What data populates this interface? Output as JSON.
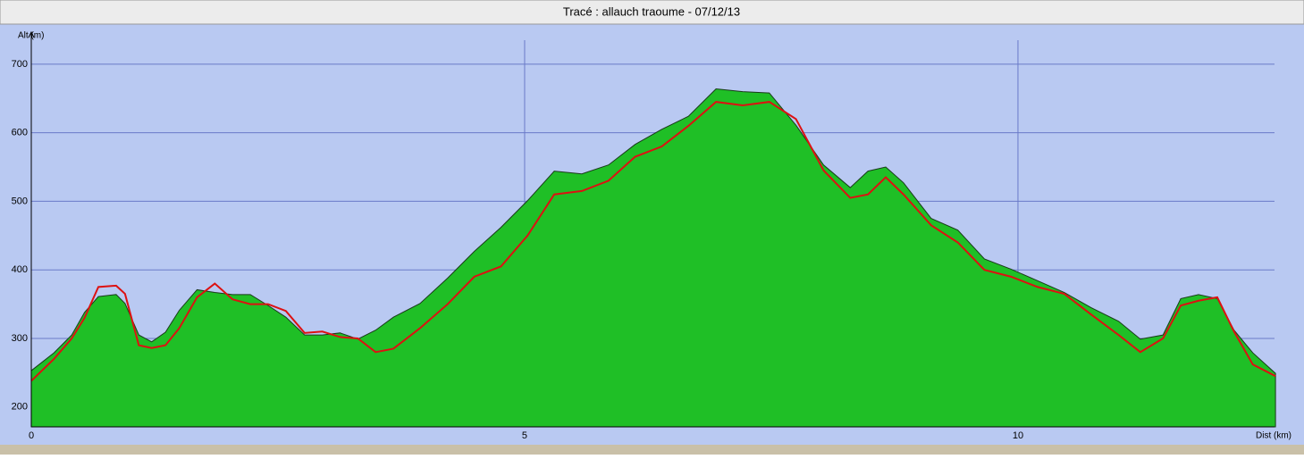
{
  "chart_data": {
    "type": "area",
    "title": "Tracé : allauch traoume - 07/12/13",
    "y_label": "Alt (m)",
    "x_label": "Dist (km)",
    "x": [
      0,
      0.23,
      0.41,
      0.54,
      0.68,
      0.86,
      0.95,
      1.09,
      1.22,
      1.36,
      1.5,
      1.68,
      1.86,
      2.04,
      2.22,
      2.4,
      2.58,
      2.77,
      2.95,
      3.13,
      3.31,
      3.49,
      3.67,
      3.94,
      4.22,
      4.49,
      4.76,
      5.03,
      5.3,
      5.58,
      5.85,
      6.12,
      6.39,
      6.66,
      6.94,
      7.21,
      7.48,
      7.75,
      8.03,
      8.3,
      8.48,
      8.66,
      8.84,
      9.12,
      9.39,
      9.66,
      9.93,
      10.2,
      10.47,
      10.74,
      11.02,
      11.24,
      11.47,
      11.65,
      11.83,
      12.02,
      12.19,
      12.38,
      12.61
    ],
    "series": [
      {
        "color": "#1fbf26",
        "fill": true,
        "values": [
          253,
          279,
          305,
          338,
          361,
          364,
          351,
          305,
          295,
          309,
          341,
          371,
          367,
          364,
          364,
          348,
          331,
          305,
          305,
          308,
          299,
          312,
          331,
          351,
          388,
          427,
          462,
          501,
          544,
          540,
          553,
          583,
          605,
          624,
          664,
          660,
          658,
          611,
          553,
          520,
          544,
          550,
          527,
          475,
          458,
          416,
          401,
          384,
          367,
          345,
          325,
          299,
          305,
          358,
          364,
          358,
          312,
          279,
          249
        ]
      },
      {
        "color": "#dd1111",
        "fill": false,
        "values": [
          238,
          270,
          300,
          330,
          375,
          377,
          365,
          290,
          286,
          290,
          315,
          360,
          380,
          357,
          350,
          350,
          340,
          308,
          310,
          302,
          300,
          280,
          285,
          315,
          350,
          390,
          405,
          450,
          510,
          515,
          530,
          565,
          580,
          610,
          645,
          640,
          645,
          620,
          545,
          505,
          510,
          535,
          510,
          465,
          440,
          400,
          390,
          375,
          365,
          335,
          305,
          280,
          300,
          348,
          355,
          360,
          310,
          262,
          245
        ]
      }
    ],
    "xlim": [
      0,
      12.6
    ],
    "xticks": [
      0,
      5,
      10
    ],
    "ylim": [
      171,
      735
    ],
    "yticks": [
      200,
      300,
      400,
      500,
      600,
      700
    ],
    "grid": true
  }
}
